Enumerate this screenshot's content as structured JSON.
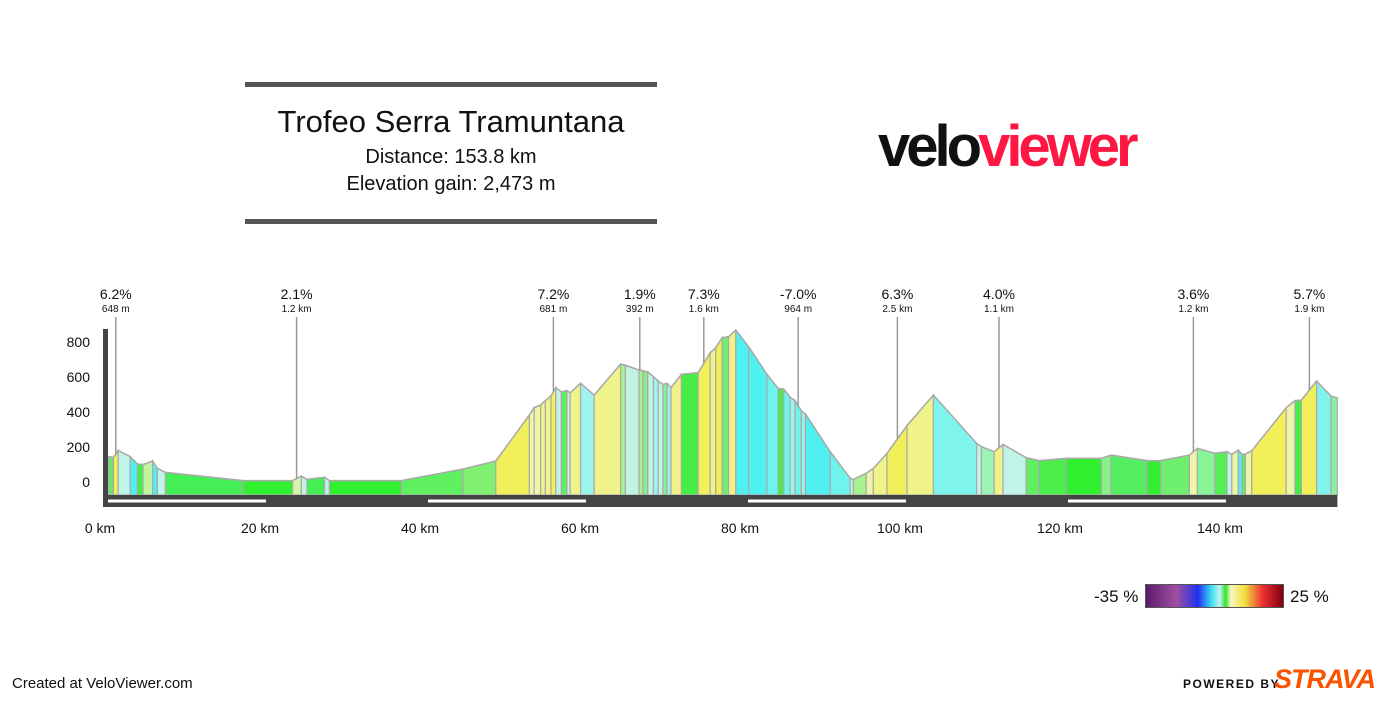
{
  "header": {
    "title": "Trofeo Serra Tramuntana",
    "distance": "Distance: 153.8 km",
    "elevation_gain": "Elevation gain: 2,473 m"
  },
  "logo": {
    "part1": "velo",
    "part2": "viewer",
    "color1": "#111111",
    "color2": "#ff1744"
  },
  "legend": {
    "min_label": "-35 %",
    "max_label": "25 %"
  },
  "footer": {
    "created": "Created at VeloViewer.com",
    "powered_by": "POWERED BY",
    "strava": "STRAVA",
    "strava_color": "#fc5200"
  },
  "chart_data": {
    "type": "area",
    "title": "",
    "xlabel": "",
    "ylabel": "",
    "xlim": [
      0,
      153.8
    ],
    "ylim": [
      -75,
      880
    ],
    "x_ticks": [
      "0 km",
      "20 km",
      "40 km",
      "60 km",
      "80 km",
      "100 km",
      "120 km",
      "140 km"
    ],
    "x_tick_values": [
      0,
      20,
      40,
      60,
      80,
      100,
      120,
      140
    ],
    "y_ticks": [
      "0",
      "200",
      "400",
      "600",
      "800"
    ],
    "y_tick_values": [
      0,
      200,
      400,
      600,
      800
    ],
    "grid": false,
    "colorscale": "gradient -35% (purple) to 25% (dark red)",
    "profile": [
      [
        0,
        145,
        null
      ],
      [
        0.25,
        145,
        "#80f4ec"
      ],
      [
        0.8,
        140,
        "#5ef05e"
      ],
      [
        1.4,
        180,
        "#f2f05a"
      ],
      [
        2.9,
        145,
        "#c0f4e8"
      ],
      [
        3.8,
        103,
        "#4ef0f0"
      ],
      [
        4.5,
        100,
        "#44ee44"
      ],
      [
        5.7,
        120,
        "#c0f4a0"
      ],
      [
        6.3,
        78,
        "#4ef0f0"
      ],
      [
        7.3,
        55,
        "#c0f4e8"
      ],
      [
        17,
        8,
        "#44ee55"
      ],
      [
        23.2,
        8,
        "#30f030"
      ],
      [
        24.3,
        34,
        "#d8f4a8"
      ],
      [
        25,
        15,
        "#c0f4e8"
      ],
      [
        27.2,
        27,
        "#44ee55"
      ],
      [
        27.8,
        8,
        "#c0f4e8"
      ],
      [
        36.8,
        8,
        "#30f030"
      ],
      [
        44.5,
        74,
        "#5ef05e"
      ],
      [
        48.6,
        120,
        "#80f070"
      ],
      [
        52.8,
        383,
        "#f2f05a"
      ],
      [
        53.4,
        425,
        "#eef4a8"
      ],
      [
        54.2,
        440,
        "#eef4a8"
      ],
      [
        54.8,
        465,
        "#f0f28a"
      ],
      [
        55.5,
        493,
        "#f0f28a"
      ],
      [
        56.1,
        539,
        "#f2f05a"
      ],
      [
        56.8,
        516,
        "#c0f4e8"
      ],
      [
        57.5,
        522,
        "#5ef05e"
      ],
      [
        57.9,
        510,
        "#c0f4e8"
      ],
      [
        59.2,
        564,
        "#f0f28a"
      ],
      [
        60.9,
        497,
        "#9ef4ec"
      ],
      [
        64.2,
        674,
        "#f0f28a"
      ],
      [
        64.8,
        667,
        "#a8f090"
      ],
      [
        66.5,
        640,
        "#c0f4e0"
      ],
      [
        67.0,
        636,
        "#a8f090"
      ],
      [
        67.6,
        629,
        "#88f088"
      ],
      [
        68.3,
        602,
        "#c0f4e8"
      ],
      [
        68.9,
        577,
        "#9ef4ec"
      ],
      [
        69.5,
        558,
        "#c0f4e8"
      ],
      [
        70.0,
        564,
        "#88f088"
      ],
      [
        70.5,
        539,
        "#9ef4ec"
      ],
      [
        71.8,
        615,
        "#f0f28a"
      ],
      [
        73.9,
        625,
        "#44ee44"
      ],
      [
        75.4,
        739,
        "#f2f05a"
      ],
      [
        76.1,
        768,
        "#f0f28a"
      ],
      [
        76.9,
        825,
        "#f2f05a"
      ],
      [
        77.7,
        830,
        "#6ef06e"
      ],
      [
        78.6,
        868,
        "#f0f28a"
      ],
      [
        80.2,
        773,
        "#4ef0f0"
      ],
      [
        82.5,
        615,
        "#4ef0f0"
      ],
      [
        83.9,
        535,
        "#6ef4ec"
      ],
      [
        84.6,
        530,
        "#44ee44"
      ],
      [
        85.4,
        484,
        "#6ef4ec"
      ],
      [
        86.0,
        465,
        "#9ef4ec"
      ],
      [
        86.8,
        406,
        "#6ef4ec"
      ],
      [
        87.3,
        389,
        "#9ef4ec"
      ],
      [
        90.4,
        173,
        "#4ef0f0"
      ],
      [
        92.9,
        21,
        "#6ef4ec"
      ],
      [
        93.3,
        15,
        "#c0f4e8"
      ],
      [
        94.9,
        50,
        "#a8f090"
      ],
      [
        95.8,
        78,
        "#eef4a8"
      ],
      [
        97.5,
        164,
        "#f0f28a"
      ],
      [
        100,
        322,
        "#f2f05a"
      ],
      [
        103.3,
        497,
        "#f0f28a"
      ],
      [
        108.7,
        221,
        "#7ef4ec"
      ],
      [
        109.3,
        202,
        "#c0f4e8"
      ],
      [
        110.9,
        173,
        "#9ef4b8"
      ],
      [
        112.0,
        215,
        "#f0f28a"
      ],
      [
        114.9,
        139,
        "#c0f4e8"
      ],
      [
        116.5,
        122,
        "#5ef05e"
      ],
      [
        119.9,
        135,
        "#4cee4c"
      ],
      [
        124.3,
        135,
        "#30f030"
      ],
      [
        125.5,
        154,
        "#88f088"
      ],
      [
        130.0,
        122,
        "#55ee60"
      ],
      [
        131.7,
        122,
        "#33ee33"
      ],
      [
        135.3,
        154,
        "#6ef06e"
      ],
      [
        136.3,
        192,
        "#eef4a8"
      ],
      [
        138.5,
        164,
        "#88f498"
      ],
      [
        140.0,
        173,
        "#55ee55"
      ],
      [
        140.6,
        158,
        "#c0f4e8"
      ],
      [
        141.4,
        182,
        "#eef4a8"
      ],
      [
        141.9,
        158,
        "#4ef0f0"
      ],
      [
        142.3,
        160,
        "#5ef05e"
      ],
      [
        143.1,
        179,
        "#eef4a8"
      ],
      [
        147.4,
        425,
        "#f2f05a"
      ],
      [
        148.5,
        465,
        "#eef4a8"
      ],
      [
        149.3,
        468,
        "#44ee44"
      ],
      [
        151.2,
        577,
        "#f2f05a"
      ],
      [
        153.0,
        491,
        "#7ef4ec"
      ],
      [
        153.8,
        480,
        "#88f0a0"
      ]
    ],
    "climbs": [
      {
        "km": 1.1,
        "gradient": "6.2%",
        "length": "648 m"
      },
      {
        "km": 23.7,
        "gradient": "2.1%",
        "length": "1.2 km"
      },
      {
        "km": 55.8,
        "gradient": "7.2%",
        "length": "681 m"
      },
      {
        "km": 66.6,
        "gradient": "1.9%",
        "length": "392 m"
      },
      {
        "km": 74.6,
        "gradient": "7.3%",
        "length": "1.6 km"
      },
      {
        "km": 86.4,
        "gradient": "-7.0%",
        "length": "964 m"
      },
      {
        "km": 98.8,
        "gradient": "6.3%",
        "length": "2.5 km"
      },
      {
        "km": 111.5,
        "gradient": "4.0%",
        "length": "1.1 km"
      },
      {
        "km": 135.8,
        "gradient": "3.6%",
        "length": "1.2 km"
      },
      {
        "km": 150.3,
        "gradient": "5.7%",
        "length": "1.9 km"
      }
    ]
  }
}
